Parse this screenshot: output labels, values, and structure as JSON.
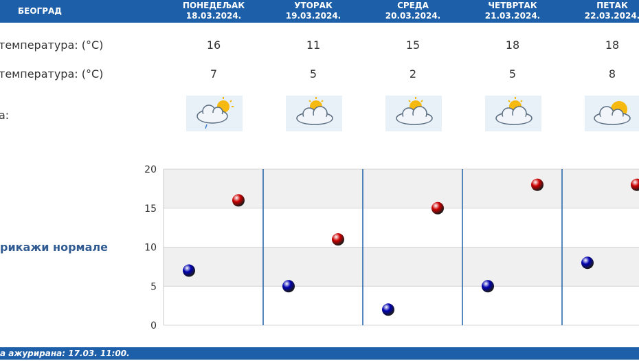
{
  "header": {
    "city": "БЕОГРАД",
    "days": [
      {
        "name": "ПОНЕДЕЉАК",
        "date": "18.03.2024."
      },
      {
        "name": "УТОРАК",
        "date": "19.03.2024."
      },
      {
        "name": "СРЕДА",
        "date": "20.03.2024."
      },
      {
        "name": "ЧЕТВРТАК",
        "date": "21.03.2024."
      },
      {
        "name": "ПЕТАК",
        "date": "22.03.2024."
      }
    ]
  },
  "rows": {
    "max_label": "температура: (°C)",
    "min_label": "температура: (°C)",
    "weather_label": "а:"
  },
  "max_temps": [
    "16",
    "11",
    "15",
    "18",
    "18"
  ],
  "min_temps": [
    "7",
    "5",
    "2",
    "5",
    "8"
  ],
  "icons": [
    "cloud-sun-rain-icon",
    "cloud-sun-icon",
    "cloud-sun-icon",
    "cloud-sun-icon",
    "cloud-sun-icon"
  ],
  "normals_label": "рикажи нормале",
  "footer": {
    "text": "а ажурирана:  17.03.  11:00."
  },
  "colors": {
    "header_bg": "#1d5fa8",
    "max_dot": "#cc0000",
    "min_dot": "#0000b0",
    "separator": "#1d5fa8"
  },
  "chart_data": {
    "type": "scatter",
    "categories": [
      "18.03.2024.",
      "19.03.2024.",
      "20.03.2024.",
      "21.03.2024.",
      "22.03.2024."
    ],
    "series": [
      {
        "values": [
          16,
          11,
          15,
          18,
          18
        ],
        "color": "#cc0000"
      },
      {
        "values": [
          7,
          5,
          2,
          5,
          8
        ],
        "color": "#0000b0"
      }
    ],
    "ylim": [
      0,
      20
    ],
    "yticks": [
      "0",
      "5",
      "10",
      "15",
      "20"
    ],
    "grid": true
  }
}
